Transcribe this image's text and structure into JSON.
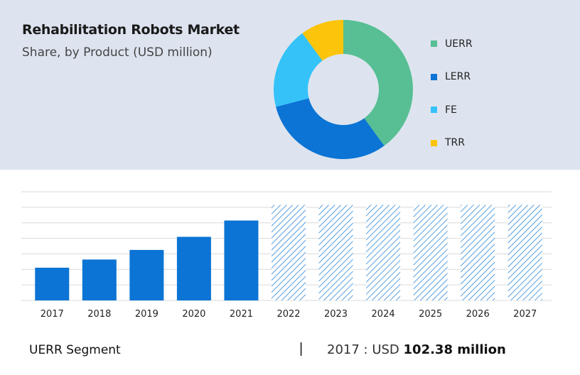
{
  "header": {
    "title": "Rehabilitation Robots Market",
    "subtitle": "Share, by Product (USD million)"
  },
  "colors": {
    "panel_bg": "#dde4ef",
    "bar": "#0b74d4",
    "forecast_hatch": "#2e86d6",
    "grid": "#d9d9d9"
  },
  "chart_data": [
    {
      "type": "pie",
      "variant": "donut",
      "title": "Share, by Product (USD million)",
      "legend_position": "right",
      "slices": [
        {
          "label": "UERR",
          "value": 40,
          "color": "#57bf93"
        },
        {
          "label": "LERR",
          "value": 31,
          "color": "#0b74d4"
        },
        {
          "label": "FE",
          "value": 19,
          "color": "#35c2f9"
        },
        {
          "label": "TRR",
          "value": 10,
          "color": "#fcc40a"
        }
      ]
    },
    {
      "type": "bar",
      "categories": [
        "2017",
        "2018",
        "2019",
        "2020",
        "2021",
        "2022",
        "2023",
        "2024",
        "2025",
        "2026",
        "2027"
      ],
      "values": [
        102.38,
        128,
        158,
        199,
        250,
        null,
        null,
        null,
        null,
        null,
        null
      ],
      "forecast": [
        false,
        false,
        false,
        false,
        false,
        true,
        true,
        true,
        true,
        true,
        true
      ],
      "ylim": [
        0,
        340
      ],
      "grid": true
    }
  ],
  "footer": {
    "segment": "UERR Segment",
    "separator": "|",
    "year_prefix": "2017 :  USD",
    "value": "102.38 million"
  }
}
